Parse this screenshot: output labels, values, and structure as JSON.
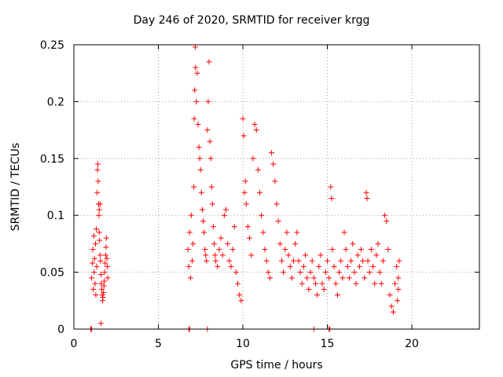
{
  "chart_data": {
    "type": "scatter",
    "title": "Day 246 of 2020, SRMTID for receiver krgg",
    "xlabel": "GPS time / hours",
    "ylabel": "SRMTID / TECUs",
    "xlim": [
      0,
      24
    ],
    "ylim": [
      0,
      0.25
    ],
    "xticks": [
      "0",
      "5",
      "10",
      "15",
      "20"
    ],
    "xtick_values": [
      0,
      5,
      10,
      15,
      20
    ],
    "yticks": [
      "0",
      "0.05",
      "0.1",
      "0.15",
      "0.2",
      "0.25"
    ],
    "ytick_values": [
      0,
      0.05,
      0.1,
      0.15,
      0.2,
      0.25
    ],
    "grid": true,
    "marker": "+",
    "color": "#ff0000",
    "series": [
      {
        "name": "SRMTID",
        "points": [
          [
            1.05,
            0.045
          ],
          [
            1.1,
            0.058
          ],
          [
            1.12,
            0.07
          ],
          [
            1.15,
            0.035
          ],
          [
            1.18,
            0.082
          ],
          [
            1.2,
            0.05
          ],
          [
            1.22,
            0.062
          ],
          [
            1.25,
            0.04
          ],
          [
            1.28,
            0.075
          ],
          [
            1.3,
            0.03
          ],
          [
            1.33,
            0.088
          ],
          [
            1.35,
            0.055
          ],
          [
            1.38,
            0.12
          ],
          [
            1.4,
            0.14
          ],
          [
            1.42,
            0.145
          ],
          [
            1.44,
            0.13
          ],
          [
            1.46,
            0.11
          ],
          [
            1.48,
            0.1
          ],
          [
            1.5,
            0.085
          ],
          [
            1.52,
            0.078
          ],
          [
            1.55,
            0.065
          ],
          [
            1.58,
            0.06
          ],
          [
            1.6,
            0.048
          ],
          [
            1.62,
            0.04
          ],
          [
            1.65,
            0.035
          ],
          [
            1.68,
            0.03
          ],
          [
            1.7,
            0.025
          ],
          [
            1.72,
            0.028
          ],
          [
            1.75,
            0.032
          ],
          [
            1.78,
            0.038
          ],
          [
            1.8,
            0.042
          ],
          [
            1.82,
            0.05
          ],
          [
            1.85,
            0.058
          ],
          [
            1.88,
            0.065
          ],
          [
            1.9,
            0.072
          ],
          [
            1.92,
            0.08
          ],
          [
            1.95,
            0.062
          ],
          [
            1.98,
            0.055
          ],
          [
            2.0,
            0.045
          ],
          [
            1.6,
            0.005
          ],
          [
            1.5,
            0.105
          ],
          [
            1.55,
            0.11
          ],
          [
            6.75,
            0.07
          ],
          [
            6.8,
            0.055
          ],
          [
            6.85,
            0.085
          ],
          [
            6.9,
            0.045
          ],
          [
            6.95,
            0.1
          ],
          [
            7.0,
            0.06
          ],
          [
            7.05,
            0.075
          ],
          [
            7.1,
            0.125
          ],
          [
            7.12,
            0.185
          ],
          [
            7.15,
            0.21
          ],
          [
            7.18,
            0.248
          ],
          [
            7.2,
            0.23
          ],
          [
            7.25,
            0.2
          ],
          [
            7.3,
            0.225
          ],
          [
            7.35,
            0.18
          ],
          [
            7.4,
            0.16
          ],
          [
            7.45,
            0.15
          ],
          [
            7.5,
            0.14
          ],
          [
            7.55,
            0.12
          ],
          [
            7.6,
            0.105
          ],
          [
            7.65,
            0.095
          ],
          [
            7.7,
            0.085
          ],
          [
            7.75,
            0.07
          ],
          [
            7.8,
            0.065
          ],
          [
            7.85,
            0.06
          ],
          [
            7.9,
            0.175
          ],
          [
            7.95,
            0.2
          ],
          [
            8.0,
            0.235
          ],
          [
            8.05,
            0.165
          ],
          [
            8.1,
            0.15
          ],
          [
            8.15,
            0.125
          ],
          [
            8.2,
            0.11
          ],
          [
            8.25,
            0.09
          ],
          [
            8.3,
            0.075
          ],
          [
            8.35,
            0.065
          ],
          [
            8.4,
            0.06
          ],
          [
            8.5,
            0.055
          ],
          [
            8.6,
            0.07
          ],
          [
            8.7,
            0.08
          ],
          [
            8.8,
            0.065
          ],
          [
            8.9,
            0.1
          ],
          [
            9.0,
            0.105
          ],
          [
            9.1,
            0.075
          ],
          [
            9.2,
            0.06
          ],
          [
            9.3,
            0.055
          ],
          [
            9.4,
            0.07
          ],
          [
            9.5,
            0.09
          ],
          [
            9.6,
            0.05
          ],
          [
            9.7,
            0.04
          ],
          [
            9.8,
            0.03
          ],
          [
            9.9,
            0.025
          ],
          [
            10.0,
            0.185
          ],
          [
            10.05,
            0.17
          ],
          [
            10.1,
            0.12
          ],
          [
            10.15,
            0.13
          ],
          [
            10.2,
            0.11
          ],
          [
            10.3,
            0.09
          ],
          [
            10.4,
            0.08
          ],
          [
            10.5,
            0.065
          ],
          [
            10.6,
            0.15
          ],
          [
            10.7,
            0.18
          ],
          [
            10.8,
            0.175
          ],
          [
            10.9,
            0.14
          ],
          [
            11.0,
            0.12
          ],
          [
            11.1,
            0.1
          ],
          [
            11.2,
            0.085
          ],
          [
            11.3,
            0.07
          ],
          [
            11.4,
            0.06
          ],
          [
            11.5,
            0.05
          ],
          [
            11.6,
            0.045
          ],
          [
            11.7,
            0.155
          ],
          [
            11.8,
            0.145
          ],
          [
            11.9,
            0.13
          ],
          [
            12.0,
            0.11
          ],
          [
            12.1,
            0.095
          ],
          [
            12.2,
            0.075
          ],
          [
            12.3,
            0.06
          ],
          [
            12.4,
            0.05
          ],
          [
            12.5,
            0.07
          ],
          [
            12.6,
            0.085
          ],
          [
            12.7,
            0.065
          ],
          [
            12.8,
            0.055
          ],
          [
            12.9,
            0.045
          ],
          [
            13.0,
            0.06
          ],
          [
            13.1,
            0.075
          ],
          [
            13.2,
            0.085
          ],
          [
            13.3,
            0.06
          ],
          [
            13.4,
            0.05
          ],
          [
            13.5,
            0.04
          ],
          [
            13.6,
            0.055
          ],
          [
            13.7,
            0.065
          ],
          [
            13.8,
            0.045
          ],
          [
            13.9,
            0.035
          ],
          [
            14.0,
            0.05
          ],
          [
            14.1,
            0.06
          ],
          [
            14.2,
            0.045
          ],
          [
            14.3,
            0.04
          ],
          [
            14.4,
            0.03
          ],
          [
            14.5,
            0.055
          ],
          [
            14.6,
            0.065
          ],
          [
            14.7,
            0.04
          ],
          [
            14.8,
            0.035
          ],
          [
            14.9,
            0.05
          ],
          [
            15.0,
            0.06
          ],
          [
            15.1,
            0.045
          ],
          [
            15.2,
            0.125
          ],
          [
            15.25,
            0.115
          ],
          [
            15.3,
            0.07
          ],
          [
            15.4,
            0.055
          ],
          [
            15.5,
            0.04
          ],
          [
            15.6,
            0.03
          ],
          [
            15.7,
            0.05
          ],
          [
            15.8,
            0.06
          ],
          [
            15.9,
            0.045
          ],
          [
            16.0,
            0.085
          ],
          [
            16.1,
            0.07
          ],
          [
            16.2,
            0.055
          ],
          [
            16.3,
            0.045
          ],
          [
            16.4,
            0.06
          ],
          [
            16.5,
            0.075
          ],
          [
            16.6,
            0.05
          ],
          [
            16.7,
            0.04
          ],
          [
            16.8,
            0.065
          ],
          [
            16.9,
            0.055
          ],
          [
            17.0,
            0.07
          ],
          [
            17.1,
            0.06
          ],
          [
            17.2,
            0.045
          ],
          [
            17.3,
            0.12
          ],
          [
            17.35,
            0.115
          ],
          [
            17.4,
            0.06
          ],
          [
            17.5,
            0.05
          ],
          [
            17.6,
            0.07
          ],
          [
            17.7,
            0.055
          ],
          [
            17.8,
            0.04
          ],
          [
            17.9,
            0.065
          ],
          [
            18.0,
            0.075
          ],
          [
            18.1,
            0.05
          ],
          [
            18.2,
            0.04
          ],
          [
            18.3,
            0.06
          ],
          [
            18.4,
            0.1
          ],
          [
            18.5,
            0.095
          ],
          [
            18.6,
            0.07
          ],
          [
            18.7,
            0.03
          ],
          [
            18.8,
            0.02
          ],
          [
            18.9,
            0.015
          ],
          [
            19.0,
            0.04
          ],
          [
            19.1,
            0.055
          ],
          [
            19.2,
            0.045
          ],
          [
            19.25,
            0.06
          ],
          [
            19.2,
            0.035
          ],
          [
            19.15,
            0.025
          ],
          [
            1.0,
            0.0
          ],
          [
            1.05,
            0.0
          ],
          [
            6.8,
            0.0
          ],
          [
            6.85,
            0.0
          ],
          [
            7.9,
            0.0
          ],
          [
            14.2,
            0.0
          ],
          [
            15.1,
            0.0
          ],
          [
            15.15,
            0.0
          ]
        ]
      }
    ]
  }
}
